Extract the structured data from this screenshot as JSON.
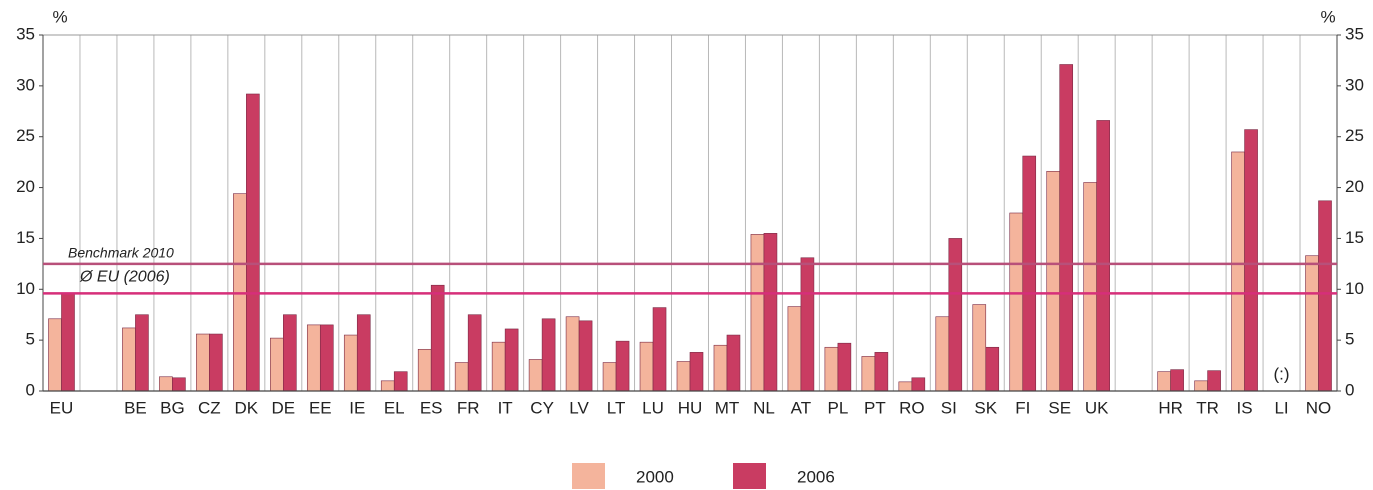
{
  "chart_data": {
    "type": "bar",
    "y_label": "%",
    "categories": [
      "EU",
      null,
      "BE",
      "BG",
      "CZ",
      "DK",
      "DE",
      "EE",
      "IE",
      "EL",
      "ES",
      "FR",
      "IT",
      "CY",
      "LV",
      "LT",
      "LU",
      "HU",
      "MT",
      "NL",
      "AT",
      "PL",
      "PT",
      "RO",
      "SI",
      "SK",
      "FI",
      "SE",
      "UK",
      null,
      "HR",
      "TR",
      "IS",
      "LI",
      "NO"
    ],
    "series": [
      {
        "name": "2000",
        "color": "#f4b49c",
        "values": [
          7.1,
          null,
          6.2,
          1.4,
          5.6,
          19.4,
          5.2,
          6.5,
          5.5,
          1.0,
          4.1,
          2.8,
          4.8,
          3.1,
          7.3,
          2.8,
          4.8,
          2.9,
          4.5,
          15.4,
          8.3,
          4.3,
          3.4,
          0.9,
          7.3,
          8.5,
          17.5,
          21.6,
          20.5,
          null,
          1.9,
          1.0,
          23.5,
          null,
          13.3
        ]
      },
      {
        "name": "2006",
        "color": "#c93c62",
        "values": [
          9.6,
          null,
          7.5,
          1.3,
          5.6,
          29.2,
          7.5,
          6.5,
          7.5,
          1.9,
          10.4,
          7.5,
          6.1,
          7.1,
          6.9,
          4.9,
          8.2,
          3.8,
          5.5,
          15.5,
          13.1,
          4.7,
          3.8,
          1.3,
          15.0,
          4.3,
          23.1,
          32.1,
          26.6,
          null,
          2.1,
          2.0,
          25.7,
          null,
          18.7
        ]
      }
    ],
    "ylim": [
      0,
      35
    ],
    "yticks": [
      0,
      5,
      10,
      15,
      20,
      25,
      30,
      35
    ],
    "reference_lines": [
      {
        "label": "Benchmark 2010",
        "value": 12.5,
        "color": "#b8507a"
      },
      {
        "label": "Ø EU (2006)",
        "value": 9.6,
        "color": "#d62f7a"
      }
    ],
    "annotations": [
      {
        "text": "(:)",
        "x": "LI"
      }
    ]
  }
}
